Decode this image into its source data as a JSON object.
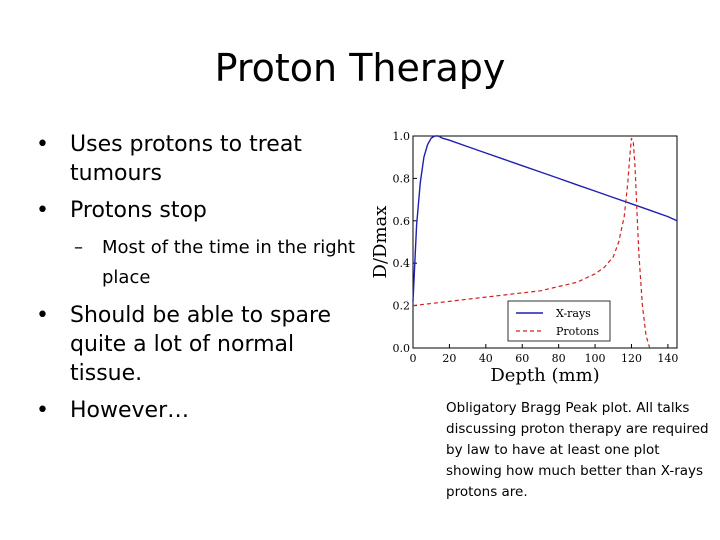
{
  "title": "Proton Therapy",
  "bullets": [
    {
      "text": "Uses protons to treat tumours"
    },
    {
      "text": "Protons stop",
      "sub": [
        {
          "text": "Most of the time in the right place"
        }
      ]
    },
    {
      "text": "Should be able to spare quite a lot of normal tissue."
    },
    {
      "text": "However…"
    }
  ],
  "caption": "Obligatory Bragg Peak plot. All talks discussing proton therapy are required by law to have at least one plot showing how much better than X-rays protons are.",
  "colors": {
    "xrays": "#1f1fb4",
    "protons": "#d22020"
  },
  "chart_data": {
    "type": "line",
    "xlabel": "Depth (mm)",
    "ylabel": "D/Dmax",
    "xlim": [
      0,
      145
    ],
    "ylim": [
      0.0,
      1.0
    ],
    "xticks": [
      0,
      20,
      40,
      60,
      80,
      100,
      120,
      140
    ],
    "yticks": [
      "0.0",
      "0.2",
      "0.4",
      "0.6",
      "0.8",
      "1.0"
    ],
    "legend_position": "bottom-right",
    "series": [
      {
        "name": "X-rays",
        "style": "solid",
        "x": [
          0,
          1,
          2,
          4,
          6,
          8,
          10,
          12,
          14,
          16,
          20,
          30,
          40,
          50,
          60,
          70,
          80,
          90,
          100,
          110,
          120,
          130,
          140,
          145
        ],
        "y": [
          0.22,
          0.4,
          0.58,
          0.78,
          0.9,
          0.96,
          0.99,
          1.0,
          1.0,
          0.99,
          0.98,
          0.95,
          0.92,
          0.89,
          0.86,
          0.83,
          0.8,
          0.77,
          0.74,
          0.71,
          0.68,
          0.65,
          0.62,
          0.6
        ]
      },
      {
        "name": "Protons",
        "style": "dashed",
        "x": [
          0,
          10,
          20,
          30,
          40,
          50,
          60,
          70,
          80,
          90,
          100,
          105,
          110,
          113,
          116,
          118,
          119,
          120,
          121,
          122,
          123,
          124,
          126,
          128,
          130
        ],
        "y": [
          0.2,
          0.21,
          0.22,
          0.23,
          0.24,
          0.25,
          0.26,
          0.27,
          0.29,
          0.31,
          0.35,
          0.38,
          0.43,
          0.5,
          0.62,
          0.78,
          0.9,
          0.99,
          0.97,
          0.85,
          0.65,
          0.45,
          0.2,
          0.06,
          0.0
        ]
      }
    ]
  }
}
